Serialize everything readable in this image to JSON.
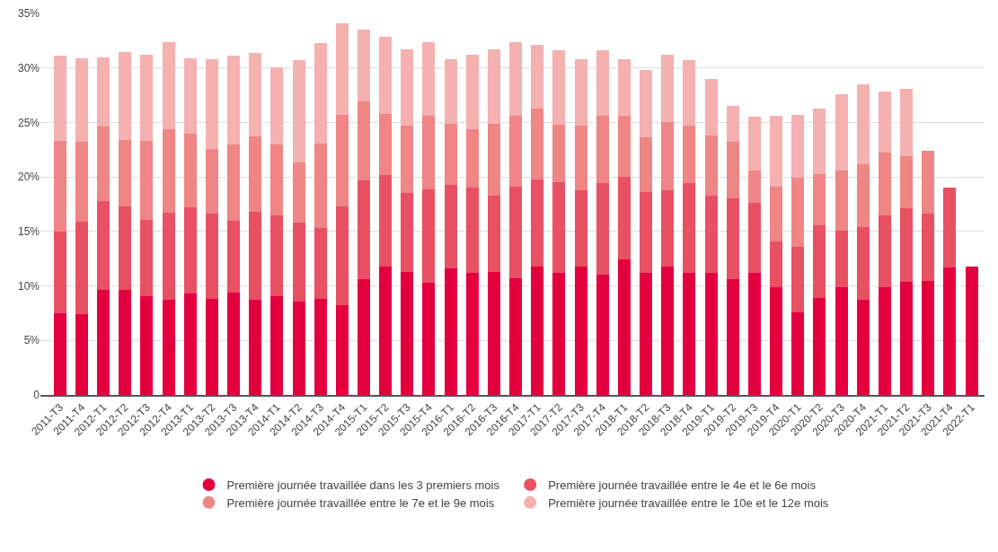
{
  "chart_data": {
    "type": "bar",
    "stacked": true,
    "categories": [
      "2011-T3",
      "2011-T4",
      "2012-T1",
      "2012-T2",
      "2012-T3",
      "2012-T4",
      "2013-T1",
      "2013-T2",
      "2013-T3",
      "2013-T4",
      "2014-T1",
      "2014-T2",
      "2014-T3",
      "2014-T4",
      "2015-T1",
      "2015-T2",
      "2015-T3",
      "2015-T4",
      "2016-T1",
      "2016-T2",
      "2016-T3",
      "2016-T4",
      "2017-T1",
      "2017-T2",
      "2017-T3",
      "2017-T4",
      "2018-T1",
      "2018-T2",
      "2018-T3",
      "2018-T4",
      "2019-T1",
      "2019-T2",
      "2019-T3",
      "2019-T4",
      "2020-T1",
      "2020-T2",
      "2020-T3",
      "2020-T4",
      "2021-T1",
      "2021-T2",
      "2021-T3",
      "2021-T4",
      "2022-T1"
    ],
    "series": [
      {
        "name": "Première journée travaillée dans les 3 premiers mois",
        "color": "#e4003f",
        "values": [
          7.5,
          7.4,
          9.6,
          9.6,
          9.1,
          8.7,
          9.3,
          8.8,
          9.4,
          8.7,
          9.1,
          8.6,
          8.8,
          8.2,
          10.6,
          11.8,
          11.3,
          10.3,
          11.6,
          11.2,
          11.3,
          10.7,
          11.8,
          11.2,
          11.8,
          11.0,
          12.4,
          11.2,
          11.8,
          11.2,
          11.2,
          10.6,
          11.2,
          9.9,
          7.6,
          8.9,
          9.9,
          8.7,
          9.9,
          10.4,
          10.5,
          11.7,
          11.8
        ]
      },
      {
        "name": "Première journée travaillée entre le 4e et le 6e mois",
        "color": "#e85064",
        "values": [
          7.5,
          8.5,
          8.2,
          7.7,
          7.0,
          8.0,
          7.9,
          7.8,
          6.6,
          8.1,
          7.4,
          7.2,
          6.5,
          9.1,
          9.1,
          8.4,
          7.2,
          8.6,
          7.7,
          7.8,
          7.0,
          8.4,
          8.0,
          8.3,
          7.0,
          8.4,
          7.6,
          7.4,
          7.0,
          8.2,
          7.1,
          7.4,
          6.4,
          4.2,
          6.0,
          6.7,
          5.2,
          6.7,
          6.6,
          6.7,
          6.1,
          7.3,
          null
        ]
      },
      {
        "name": "Première journée travaillée entre le 7e et le 9e mois",
        "color": "#ef8585",
        "values": [
          8.3,
          7.3,
          6.8,
          6.1,
          7.2,
          7.7,
          6.8,
          6.0,
          7.0,
          6.9,
          6.5,
          5.5,
          7.8,
          8.4,
          7.2,
          5.6,
          6.2,
          6.7,
          5.6,
          5.4,
          6.6,
          6.5,
          6.5,
          5.3,
          5.9,
          6.2,
          5.6,
          5.0,
          6.2,
          5.3,
          5.5,
          5.2,
          3.0,
          5.0,
          6.3,
          4.7,
          5.5,
          5.8,
          5.7,
          4.8,
          5.8,
          null,
          null
        ]
      },
      {
        "name": "Première journée travaillée entre le 10e et le 12e mois",
        "color": "#f5b0b0",
        "values": [
          7.8,
          7.7,
          6.4,
          8.1,
          7.9,
          8.0,
          6.9,
          8.2,
          8.1,
          7.7,
          7.1,
          9.4,
          9.2,
          8.4,
          6.6,
          7.1,
          7.0,
          6.8,
          5.9,
          6.8,
          6.8,
          6.8,
          5.8,
          6.8,
          6.1,
          6.0,
          5.2,
          6.2,
          6.2,
          6.0,
          5.2,
          3.3,
          4.9,
          6.5,
          5.8,
          6.0,
          7.0,
          7.3,
          5.6,
          6.2,
          null,
          null,
          null
        ]
      }
    ],
    "ylim": [
      0,
      35
    ],
    "yticks": [
      0,
      {
        "value": 5,
        "label": "5%"
      },
      {
        "value": 10,
        "label": "10%"
      },
      {
        "value": 15,
        "label": "15%"
      },
      {
        "value": 20,
        "label": "20%"
      },
      {
        "value": 25,
        "label": "25%"
      },
      {
        "value": 30,
        "label": "30%"
      },
      {
        "value": 35,
        "label": "35%"
      }
    ],
    "grid": "y",
    "legend": "bottom",
    "marker": "circle"
  }
}
